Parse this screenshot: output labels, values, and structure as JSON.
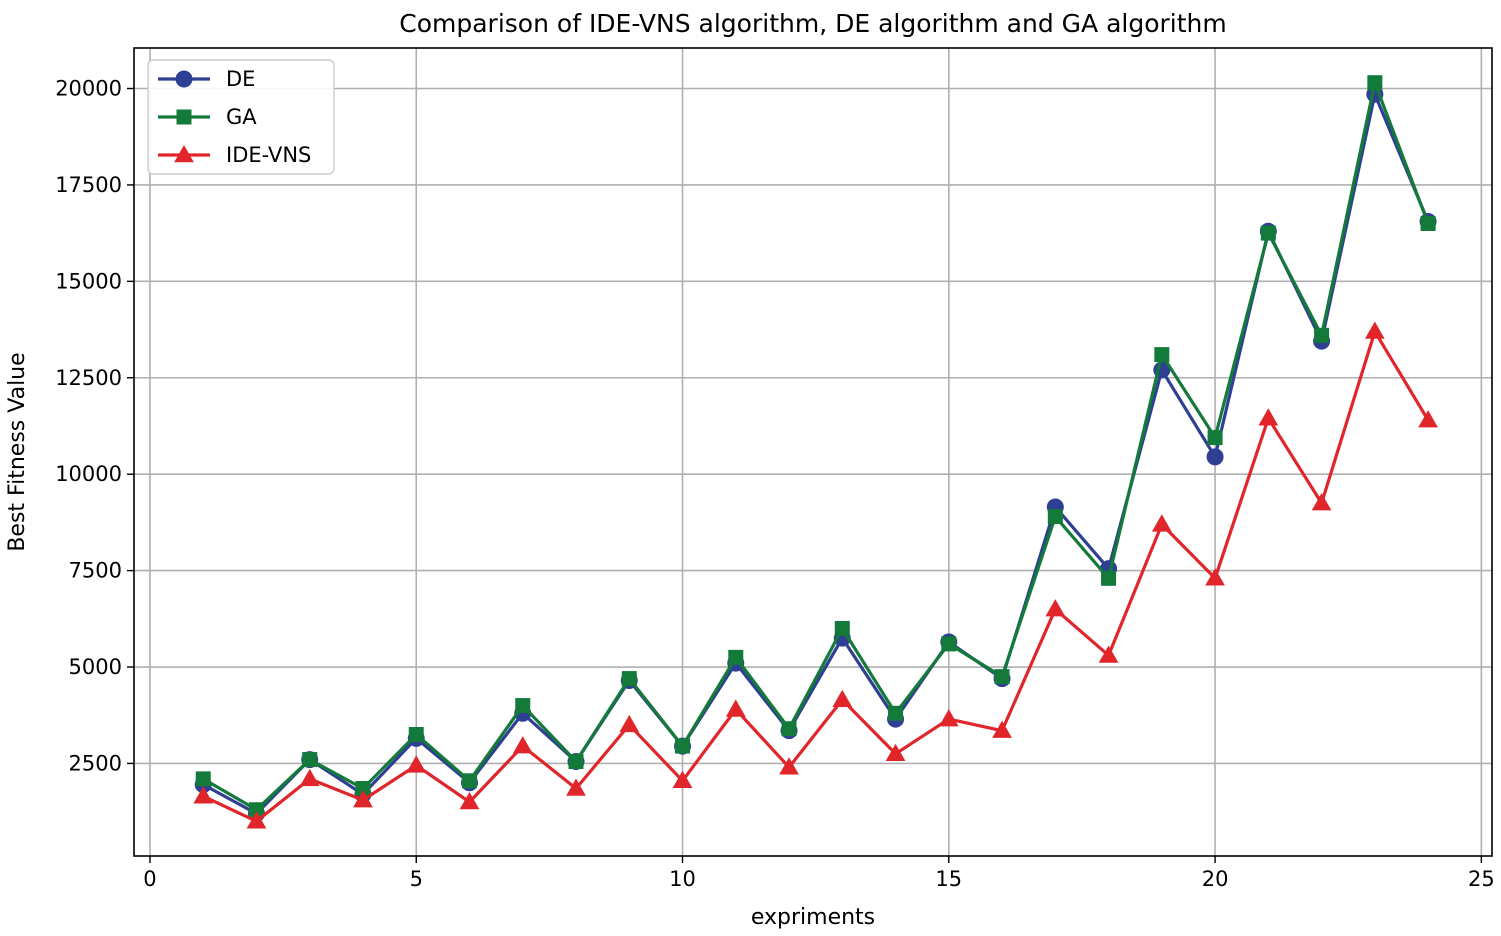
{
  "chart_data": {
    "type": "line",
    "title": "Comparison of IDE-VNS algorithm, DE algorithm and GA algorithm",
    "xlabel": "expriments",
    "ylabel": "Best Fitness Value",
    "xlim": [
      -0.3,
      25.2
    ],
    "ylim": [
      100,
      21050
    ],
    "xticks": [
      0,
      5,
      10,
      15,
      20,
      25
    ],
    "yticks": [
      2500,
      5000,
      7500,
      10000,
      12500,
      15000,
      17500,
      20000
    ],
    "grid": true,
    "legend_position": "top-left",
    "x": [
      1,
      2,
      3,
      4,
      5,
      6,
      7,
      8,
      9,
      10,
      11,
      12,
      13,
      14,
      15,
      16,
      17,
      18,
      19,
      20,
      21,
      22,
      23,
      24
    ],
    "series": [
      {
        "name": "DE",
        "color": "#2e3f94",
        "marker": "circle",
        "values": [
          1950,
          1200,
          2600,
          1700,
          3150,
          2000,
          3800,
          2550,
          4650,
          2950,
          5100,
          3350,
          5750,
          3650,
          5650,
          4700,
          9150,
          7550,
          12700,
          10450,
          16300,
          13450,
          19850,
          16550
        ]
      },
      {
        "name": "GA",
        "color": "#137a3a",
        "marker": "square",
        "values": [
          2100,
          1300,
          2600,
          1850,
          3250,
          2050,
          4000,
          2550,
          4700,
          2950,
          5250,
          3400,
          6000,
          3800,
          5600,
          4750,
          8900,
          7300,
          13100,
          10950,
          16250,
          13600,
          20150,
          16500
        ]
      },
      {
        "name": "IDE-VNS",
        "color": "#e0262b",
        "marker": "triangle",
        "values": [
          1650,
          1000,
          2100,
          1550,
          2450,
          1500,
          2950,
          1850,
          3500,
          2050,
          3900,
          2400,
          4150,
          2750,
          3650,
          3350,
          6500,
          5300,
          8700,
          7300,
          11450,
          9250,
          13700,
          11400
        ]
      }
    ]
  }
}
